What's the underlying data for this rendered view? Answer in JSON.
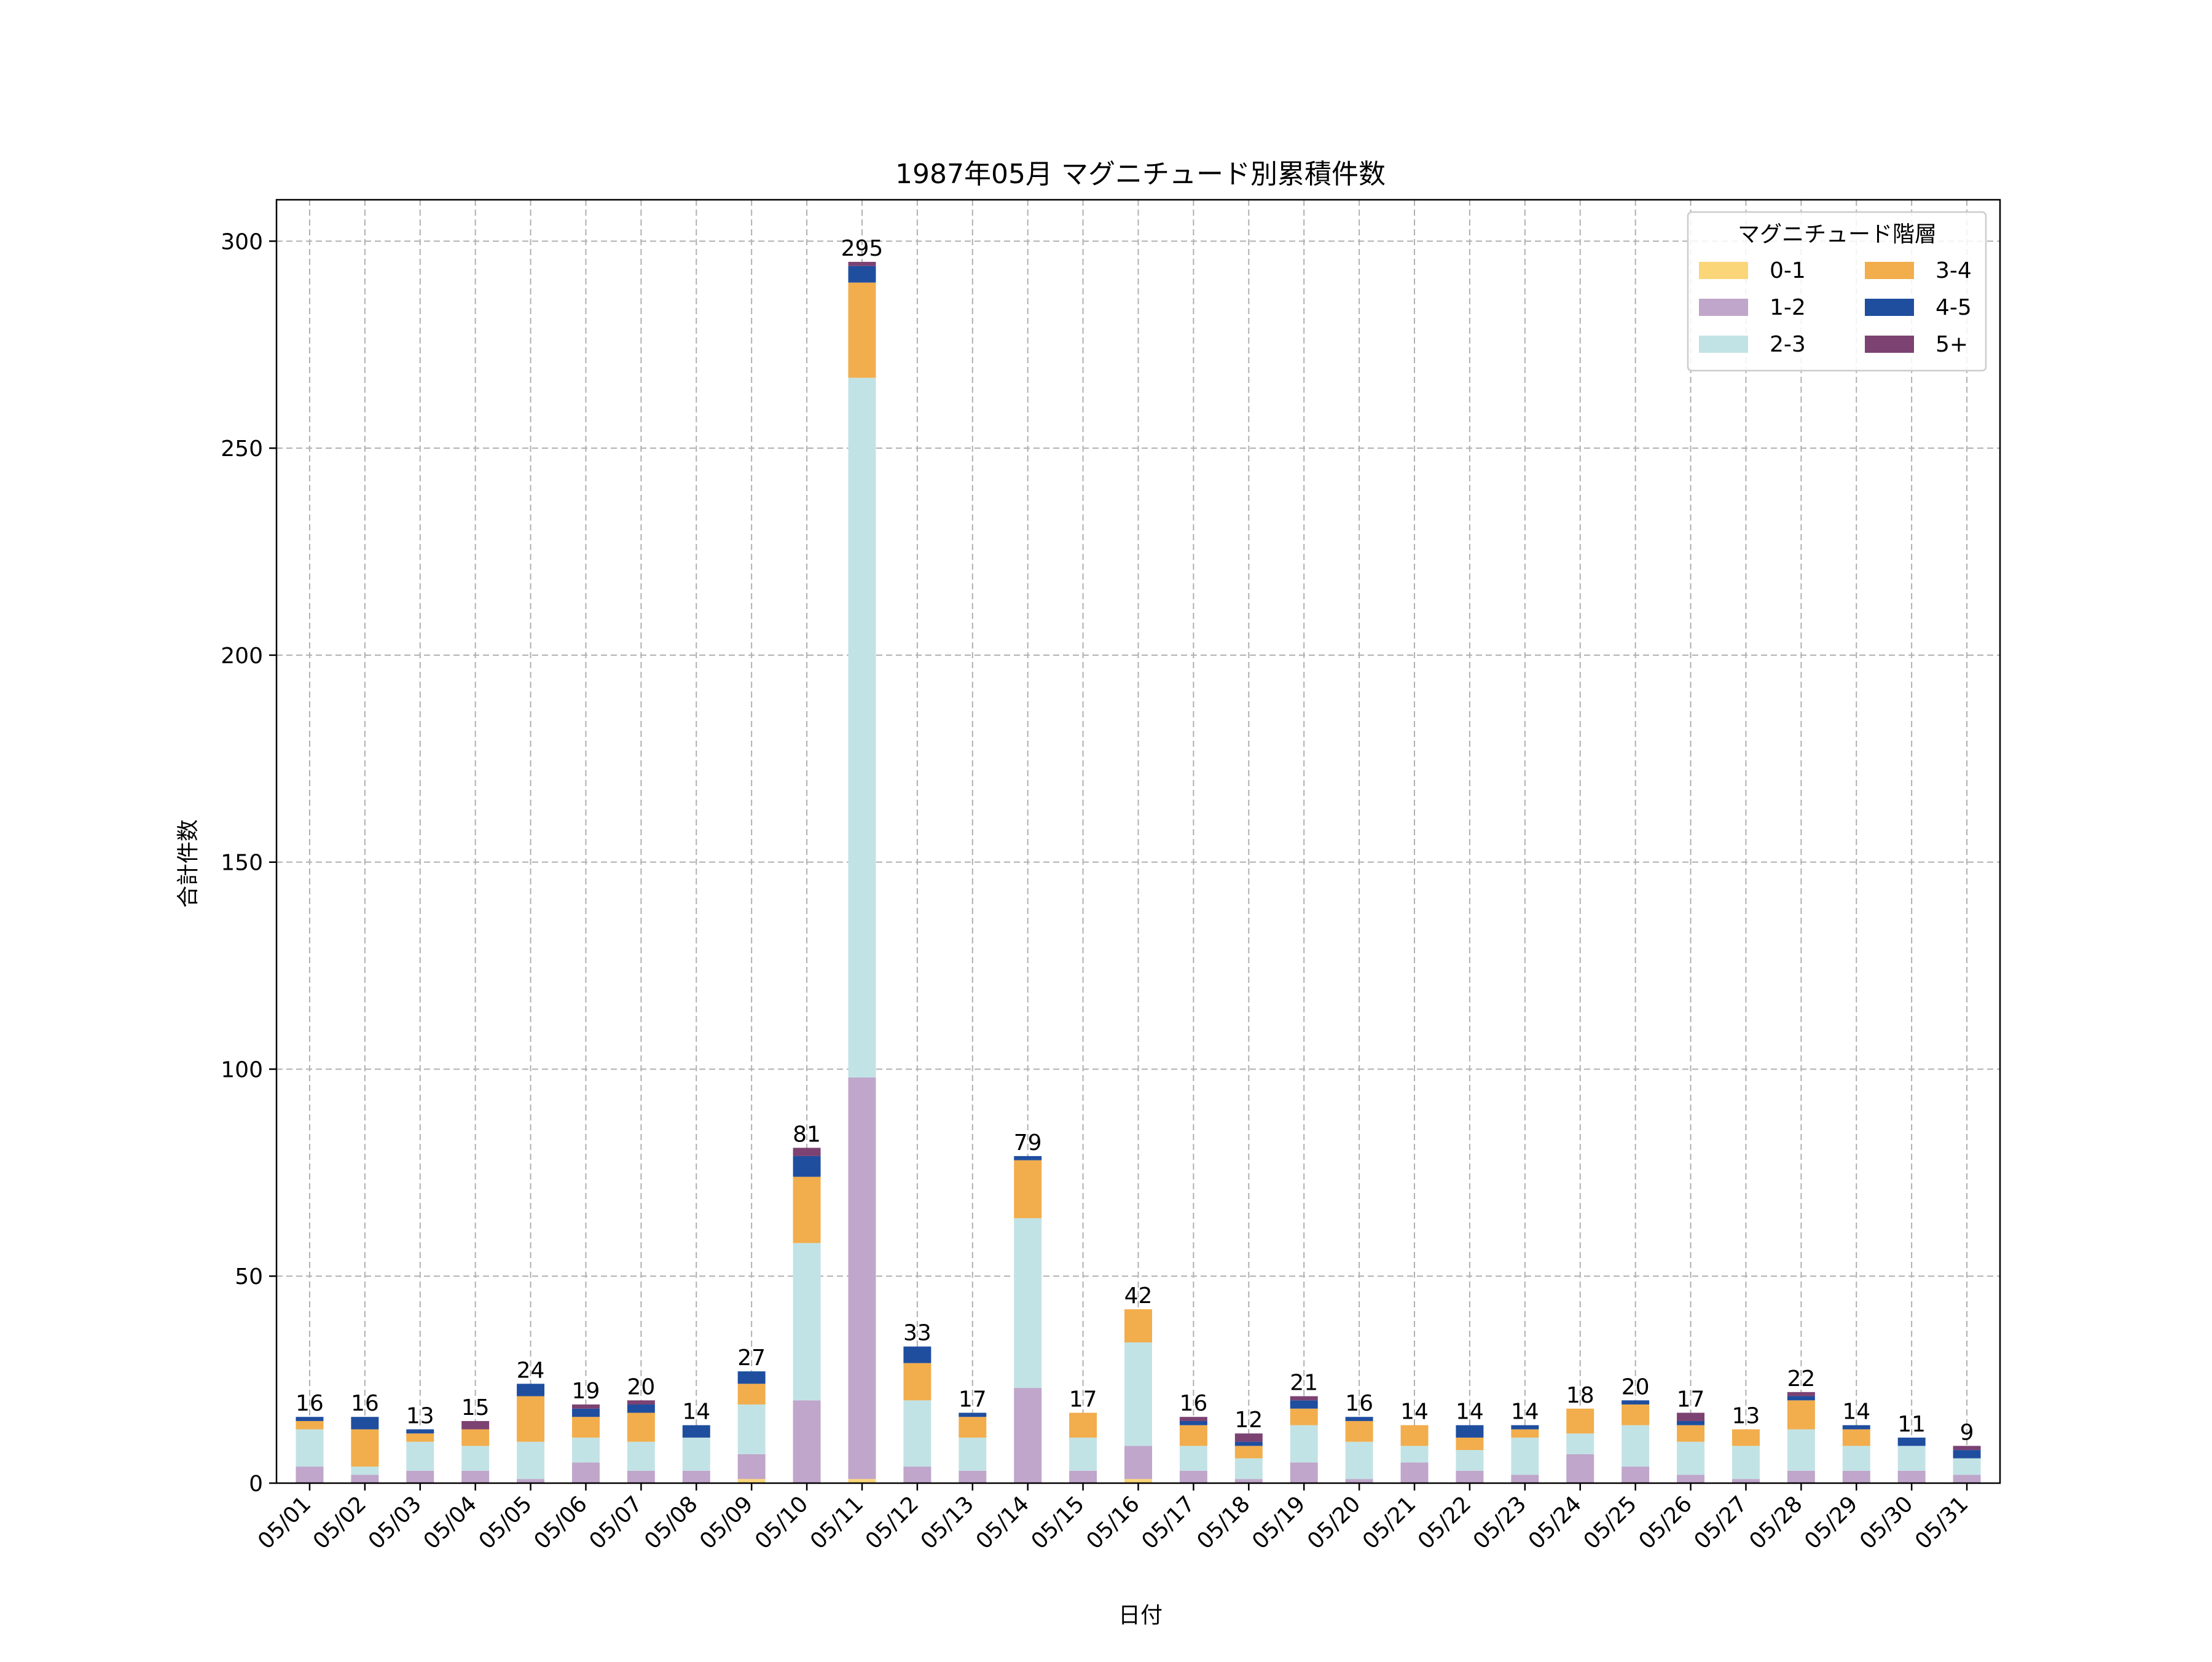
{
  "chart_data": {
    "type": "bar",
    "stacked": true,
    "title": "1987年05月 マグニチュード別累積件数",
    "xlabel": "日付",
    "ylabel": "合計件数",
    "ylim": [
      0,
      310
    ],
    "yticks": [
      0,
      50,
      100,
      150,
      200,
      250,
      300
    ],
    "grid": true,
    "legend": {
      "title": "マグニチュード階層",
      "placement": "top-right",
      "columns": 2
    },
    "categories": [
      "05/01",
      "05/02",
      "05/03",
      "05/04",
      "05/05",
      "05/06",
      "05/07",
      "05/08",
      "05/09",
      "05/10",
      "05/11",
      "05/12",
      "05/13",
      "05/14",
      "05/15",
      "05/16",
      "05/17",
      "05/18",
      "05/19",
      "05/20",
      "05/21",
      "05/22",
      "05/23",
      "05/24",
      "05/25",
      "05/26",
      "05/27",
      "05/28",
      "05/29",
      "05/30",
      "05/31"
    ],
    "totals": [
      16,
      16,
      13,
      15,
      24,
      19,
      20,
      14,
      27,
      81,
      295,
      33,
      17,
      79,
      17,
      42,
      16,
      12,
      21,
      16,
      14,
      14,
      14,
      18,
      20,
      17,
      13,
      22,
      14,
      11,
      9
    ],
    "series": [
      {
        "name": "0-1",
        "color": "#fbd679",
        "values": [
          0,
          0,
          0,
          0,
          0,
          0,
          0,
          0,
          1,
          0,
          1,
          0,
          0,
          0,
          0,
          1,
          0,
          0,
          0,
          0,
          0,
          0,
          0,
          0,
          0,
          0,
          0,
          0,
          0,
          0,
          0
        ]
      },
      {
        "name": "1-2",
        "color": "#bfa6ca",
        "values": [
          4,
          2,
          3,
          3,
          1,
          5,
          3,
          3,
          6,
          20,
          97,
          4,
          3,
          23,
          3,
          8,
          3,
          1,
          5,
          1,
          5,
          3,
          2,
          7,
          4,
          2,
          1,
          3,
          3,
          3,
          2
        ]
      },
      {
        "name": "2-3",
        "color": "#c2e3e5",
        "values": [
          9,
          2,
          7,
          6,
          9,
          6,
          7,
          8,
          12,
          38,
          169,
          16,
          8,
          41,
          8,
          25,
          6,
          5,
          9,
          9,
          4,
          5,
          9,
          5,
          10,
          8,
          8,
          10,
          6,
          6,
          4
        ]
      },
      {
        "name": "3-4",
        "color": "#f2ad4c",
        "values": [
          2,
          9,
          2,
          4,
          11,
          5,
          7,
          0,
          5,
          16,
          23,
          9,
          5,
          14,
          6,
          8,
          5,
          3,
          4,
          5,
          5,
          3,
          2,
          6,
          5,
          4,
          4,
          7,
          4,
          0,
          0
        ]
      },
      {
        "name": "4-5",
        "color": "#1f4e9f",
        "values": [
          1,
          3,
          1,
          0,
          3,
          2,
          2,
          3,
          3,
          5,
          4,
          4,
          1,
          1,
          0,
          0,
          1,
          1,
          2,
          1,
          0,
          3,
          1,
          0,
          1,
          1,
          0,
          1,
          1,
          2,
          2
        ]
      },
      {
        "name": "5+",
        "color": "#7b4272",
        "values": [
          0,
          0,
          0,
          2,
          0,
          1,
          1,
          0,
          0,
          2,
          1,
          0,
          0,
          0,
          0,
          0,
          1,
          2,
          1,
          0,
          0,
          0,
          0,
          0,
          0,
          2,
          0,
          1,
          0,
          0,
          1
        ]
      }
    ]
  }
}
